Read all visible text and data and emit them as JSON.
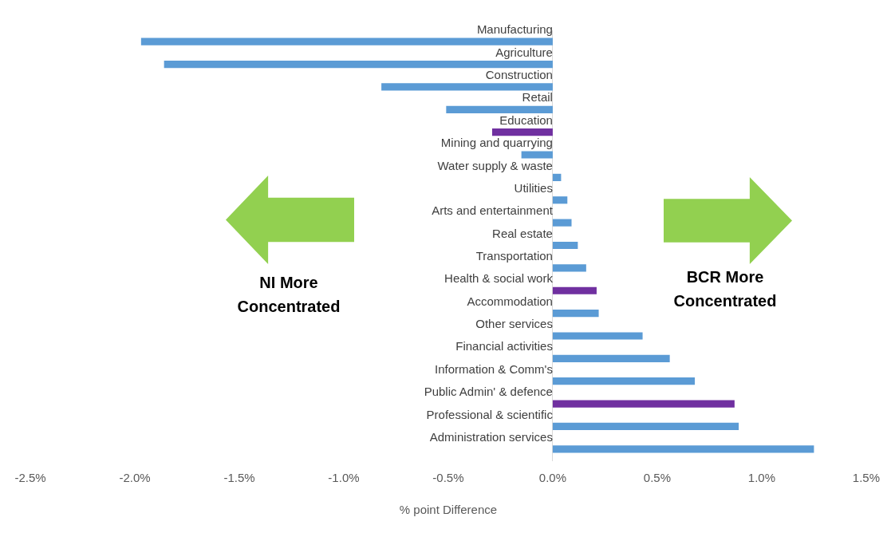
{
  "chart_data": {
    "type": "bar",
    "orientation": "horizontal",
    "categories": [
      "Manufacturing",
      "Agriculture",
      "Construction",
      "Retail",
      "Education",
      "Mining and quarrying",
      "Water supply & waste",
      "Utilities",
      "Arts and entertainment",
      "Real estate",
      "Transportation",
      "Health & social work",
      "Accommodation",
      "Other services",
      "Financial activities",
      "Information & Comm's",
      "Public Admin' & defence",
      "Professional & scientific",
      "Administration services"
    ],
    "values": [
      -1.97,
      -1.86,
      -0.82,
      -0.51,
      -0.29,
      -0.15,
      0.04,
      0.07,
      0.09,
      0.12,
      0.16,
      0.21,
      0.22,
      0.43,
      0.56,
      0.68,
      0.87,
      0.89,
      1.25
    ],
    "colors": [
      "#5b9bd5",
      "#5b9bd5",
      "#5b9bd5",
      "#5b9bd5",
      "#7030a0",
      "#5b9bd5",
      "#5b9bd5",
      "#5b9bd5",
      "#5b9bd5",
      "#5b9bd5",
      "#5b9bd5",
      "#7030a0",
      "#5b9bd5",
      "#5b9bd5",
      "#5b9bd5",
      "#5b9bd5",
      "#7030a0",
      "#5b9bd5",
      "#5b9bd5"
    ],
    "xlim": [
      -2.5,
      1.5
    ],
    "xticks": [
      {
        "value": -2.5,
        "label": "-2.5%"
      },
      {
        "value": -2,
        "label": "-2.0%"
      },
      {
        "value": -1.5,
        "label": "-1.5%"
      },
      {
        "value": -1,
        "label": "-1.0%"
      },
      {
        "value": -0.5,
        "label": "-0.5%"
      },
      {
        "value": 0,
        "label": "0.0%"
      },
      {
        "value": 0.5,
        "label": "0.5%"
      },
      {
        "value": 1,
        "label": "1.0%"
      },
      {
        "value": 1.5,
        "label": "1.5%"
      }
    ],
    "xlabel": "% point Difference",
    "annotations": [
      "NI More Concentrated",
      "BCR More Concentrated"
    ],
    "grid": false,
    "legend": false
  }
}
